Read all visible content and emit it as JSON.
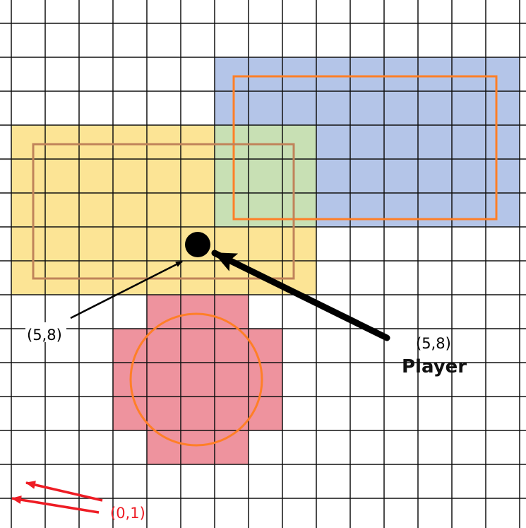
{
  "colors": {
    "blue_zone": "#b4c5e8",
    "yellow_zone": "#fce495",
    "green_overlap": "#c8e0b4",
    "red_zone": "#ee939e",
    "orange_outline": "#ff7f27",
    "brown_outline": "#c0835a",
    "arrow_red": "#ee1c24",
    "grid": "#111111"
  },
  "labels": {
    "point_label_left": "(5,8)",
    "point_label_right": "(5,8)",
    "player_label": "Player",
    "origin_label": "(0,1)"
  }
}
